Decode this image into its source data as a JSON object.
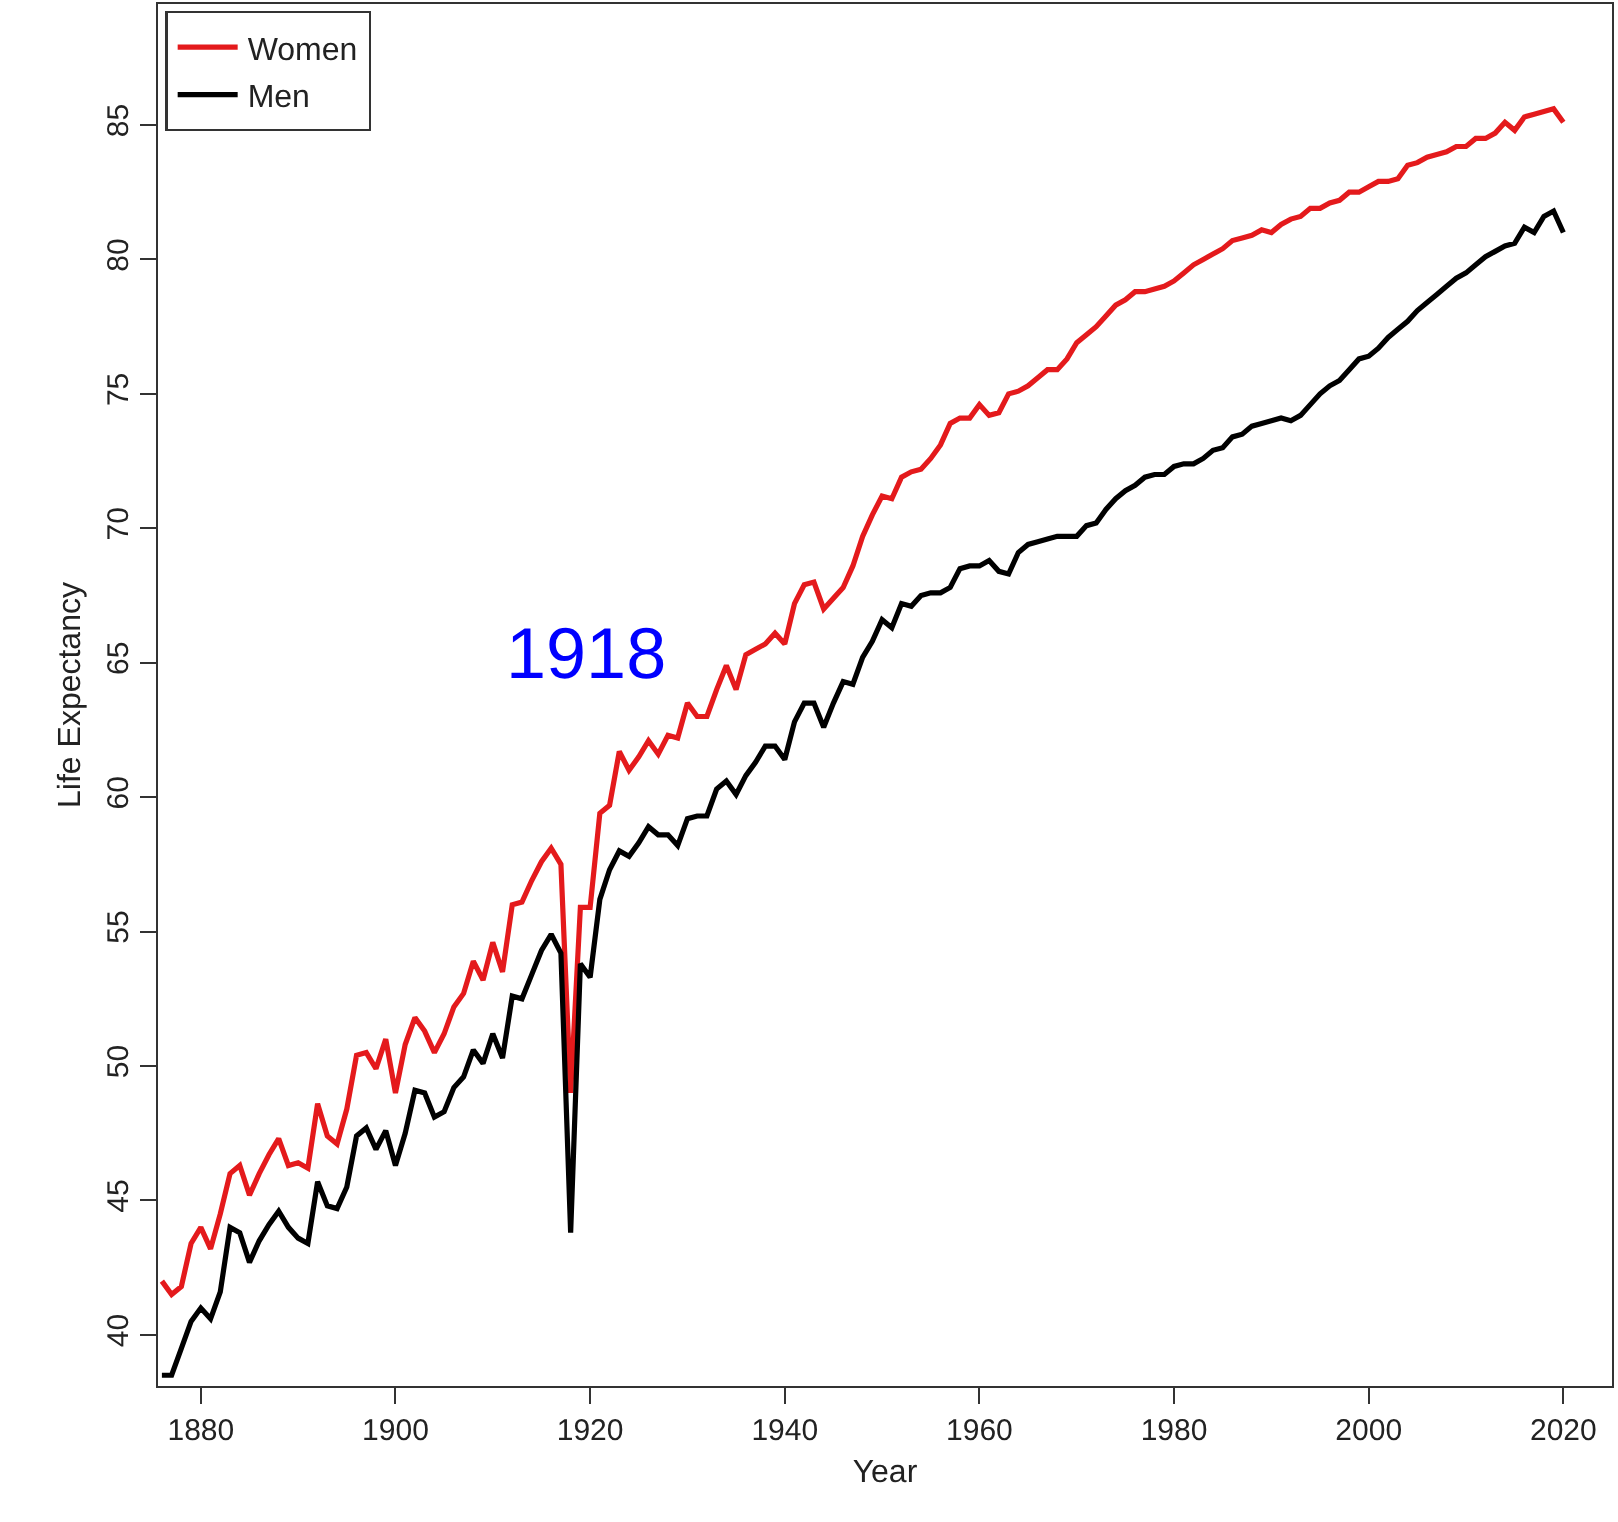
{
  "chart_data": {
    "type": "line",
    "xlabel": "Year",
    "ylabel": "Life Expectancy",
    "x": [
      1876,
      1877,
      1878,
      1879,
      1880,
      1881,
      1882,
      1883,
      1884,
      1885,
      1886,
      1887,
      1888,
      1889,
      1890,
      1891,
      1892,
      1893,
      1894,
      1895,
      1896,
      1897,
      1898,
      1899,
      1900,
      1901,
      1902,
      1903,
      1904,
      1905,
      1906,
      1907,
      1908,
      1909,
      1910,
      1911,
      1912,
      1913,
      1914,
      1915,
      1916,
      1917,
      1918,
      1919,
      1920,
      1921,
      1922,
      1923,
      1924,
      1925,
      1926,
      1927,
      1928,
      1929,
      1930,
      1931,
      1932,
      1933,
      1934,
      1935,
      1936,
      1937,
      1938,
      1939,
      1940,
      1941,
      1942,
      1943,
      1944,
      1945,
      1946,
      1947,
      1948,
      1949,
      1950,
      1951,
      1952,
      1953,
      1954,
      1955,
      1956,
      1957,
      1958,
      1959,
      1960,
      1961,
      1962,
      1963,
      1964,
      1965,
      1966,
      1967,
      1968,
      1969,
      1970,
      1971,
      1972,
      1973,
      1974,
      1975,
      1976,
      1977,
      1978,
      1979,
      1980,
      1981,
      1982,
      1983,
      1984,
      1985,
      1986,
      1987,
      1988,
      1989,
      1990,
      1991,
      1992,
      1993,
      1994,
      1995,
      1996,
      1997,
      1998,
      1999,
      2000,
      2001,
      2002,
      2003,
      2004,
      2005,
      2006,
      2007,
      2008,
      2009,
      2010,
      2011,
      2012,
      2013,
      2014,
      2015,
      2016,
      2017,
      2018,
      2019,
      2020
    ],
    "series": [
      {
        "name": "Women",
        "color": "#e41a1c",
        "values": [
          42.0,
          41.5,
          41.8,
          43.4,
          44.0,
          43.2,
          44.5,
          46.0,
          46.3,
          45.2,
          46.0,
          46.7,
          47.3,
          46.3,
          46.4,
          46.2,
          48.6,
          47.4,
          47.1,
          48.4,
          50.4,
          50.5,
          49.9,
          51.0,
          49.0,
          50.8,
          51.8,
          51.3,
          50.5,
          51.2,
          52.2,
          52.7,
          53.9,
          53.2,
          54.6,
          53.5,
          56.0,
          56.1,
          56.9,
          57.6,
          58.1,
          57.5,
          49.0,
          55.9,
          55.9,
          59.4,
          59.7,
          61.7,
          61.0,
          61.5,
          62.1,
          61.6,
          62.3,
          62.2,
          63.5,
          63.0,
          63.0,
          64.0,
          64.9,
          64.0,
          65.3,
          65.5,
          65.7,
          66.1,
          65.7,
          67.2,
          67.9,
          68.0,
          67.0,
          67.4,
          67.8,
          68.6,
          69.7,
          70.5,
          71.2,
          71.1,
          71.9,
          72.1,
          72.2,
          72.6,
          73.1,
          73.9,
          74.1,
          74.1,
          74.6,
          74.2,
          74.3,
          75.0,
          75.1,
          75.3,
          75.6,
          75.9,
          75.9,
          76.3,
          76.9,
          77.2,
          77.5,
          77.9,
          78.3,
          78.5,
          78.8,
          78.8,
          78.9,
          79.0,
          79.2,
          79.5,
          79.8,
          80.0,
          80.2,
          80.4,
          80.7,
          80.8,
          80.9,
          81.1,
          81.0,
          81.3,
          81.5,
          81.6,
          81.9,
          81.9,
          82.1,
          82.2,
          82.5,
          82.5,
          82.7,
          82.9,
          82.9,
          83.0,
          83.5,
          83.6,
          83.8,
          83.9,
          84.0,
          84.2,
          84.2,
          84.5,
          84.5,
          84.7,
          85.1,
          84.8,
          85.3,
          85.4,
          85.5,
          85.6,
          85.1
        ]
      },
      {
        "name": "Men",
        "color": "#000000",
        "values": [
          38.5,
          38.5,
          39.5,
          40.5,
          41.0,
          40.6,
          41.6,
          44.0,
          43.8,
          42.7,
          43.5,
          44.1,
          44.6,
          44.0,
          43.6,
          43.4,
          45.7,
          44.8,
          44.7,
          45.5,
          47.4,
          47.7,
          46.9,
          47.6,
          46.3,
          47.5,
          49.1,
          49.0,
          48.1,
          48.3,
          49.2,
          49.6,
          50.6,
          50.1,
          51.2,
          50.3,
          52.6,
          52.5,
          53.4,
          54.3,
          54.9,
          54.2,
          43.8,
          53.8,
          53.3,
          56.2,
          57.3,
          58.0,
          57.8,
          58.3,
          58.9,
          58.6,
          58.6,
          58.2,
          59.2,
          59.3,
          59.3,
          60.3,
          60.6,
          60.1,
          60.8,
          61.3,
          61.9,
          61.9,
          61.4,
          62.8,
          63.5,
          63.5,
          62.6,
          63.5,
          64.3,
          64.2,
          65.2,
          65.8,
          66.6,
          66.3,
          67.2,
          67.1,
          67.5,
          67.6,
          67.6,
          67.8,
          68.5,
          68.6,
          68.6,
          68.8,
          68.4,
          68.3,
          69.1,
          69.4,
          69.5,
          69.6,
          69.7,
          69.7,
          69.7,
          70.1,
          70.2,
          70.7,
          71.1,
          71.4,
          71.6,
          71.9,
          72.0,
          72.0,
          72.3,
          72.4,
          72.4,
          72.6,
          72.9,
          73.0,
          73.4,
          73.5,
          73.8,
          73.9,
          74.0,
          74.1,
          74.0,
          74.2,
          74.6,
          75.0,
          75.3,
          75.5,
          75.9,
          76.3,
          76.4,
          76.7,
          77.1,
          77.4,
          77.7,
          78.1,
          78.4,
          78.7,
          79.0,
          79.3,
          79.5,
          79.8,
          80.1,
          80.3,
          80.5,
          80.6,
          81.2,
          81.0,
          81.6,
          81.8,
          81.0
        ]
      }
    ],
    "xlim": [
      1875.6,
      2025
    ],
    "xticks": [
      1880,
      1900,
      1920,
      1940,
      1960,
      1980,
      2000,
      2020
    ],
    "ylim": [
      38.1,
      89.5
    ],
    "yticks": [
      40,
      45,
      50,
      55,
      60,
      65,
      70,
      75,
      80,
      85
    ],
    "annotations": [
      "1918"
    ],
    "legend": "top left",
    "marker": "none",
    "line_style": "solid"
  }
}
